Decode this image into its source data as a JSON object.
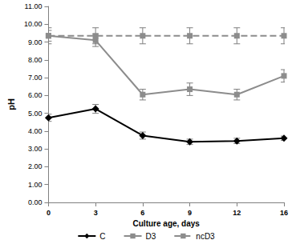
{
  "chart_data": {
    "type": "line",
    "x_label": "Culture age, days",
    "y_label": "pH",
    "categories": [
      "0",
      "3",
      "6",
      "9",
      "12",
      "16"
    ],
    "series": [
      {
        "name": "C",
        "color": "#000000",
        "marker": "diamond",
        "line_style": "solid",
        "values": [
          4.75,
          5.25,
          3.75,
          3.4,
          3.45,
          3.6
        ],
        "errors": [
          0.2,
          0.25,
          0.2,
          0.15,
          0.15,
          0.12
        ]
      },
      {
        "name": "D3",
        "color": "#8c8c8c",
        "marker": "square",
        "line_style": "solid",
        "values": [
          9.35,
          9.1,
          6.05,
          6.35,
          6.05,
          7.1
        ],
        "errors": [
          0.3,
          0.35,
          0.3,
          0.35,
          0.3,
          0.35
        ]
      },
      {
        "name": "ncD3",
        "color": "#8c8c8c",
        "marker": "square",
        "line_style": "dashed",
        "values": [
          9.35,
          9.35,
          9.35,
          9.35,
          9.35,
          9.35
        ],
        "errors": [
          0.45,
          0.45,
          0.45,
          0.45,
          0.45,
          0.45
        ]
      }
    ],
    "ylim": [
      0,
      11
    ],
    "yticks": [
      {
        "value": 0,
        "label": "0.00"
      },
      {
        "value": 1,
        "label": "1.00"
      },
      {
        "value": 2,
        "label": "2.00"
      },
      {
        "value": 3,
        "label": "3.00"
      },
      {
        "value": 4,
        "label": "4.00"
      },
      {
        "value": 5,
        "label": "5.00"
      },
      {
        "value": 6,
        "label": "6.00"
      },
      {
        "value": 7,
        "label": "7.00"
      },
      {
        "value": 8,
        "label": "8.00"
      },
      {
        "value": 9,
        "label": "9.00"
      },
      {
        "value": 10,
        "label": "10.00"
      },
      {
        "value": 11,
        "label": "11.00"
      }
    ],
    "grid": false,
    "legend": "bottom"
  }
}
